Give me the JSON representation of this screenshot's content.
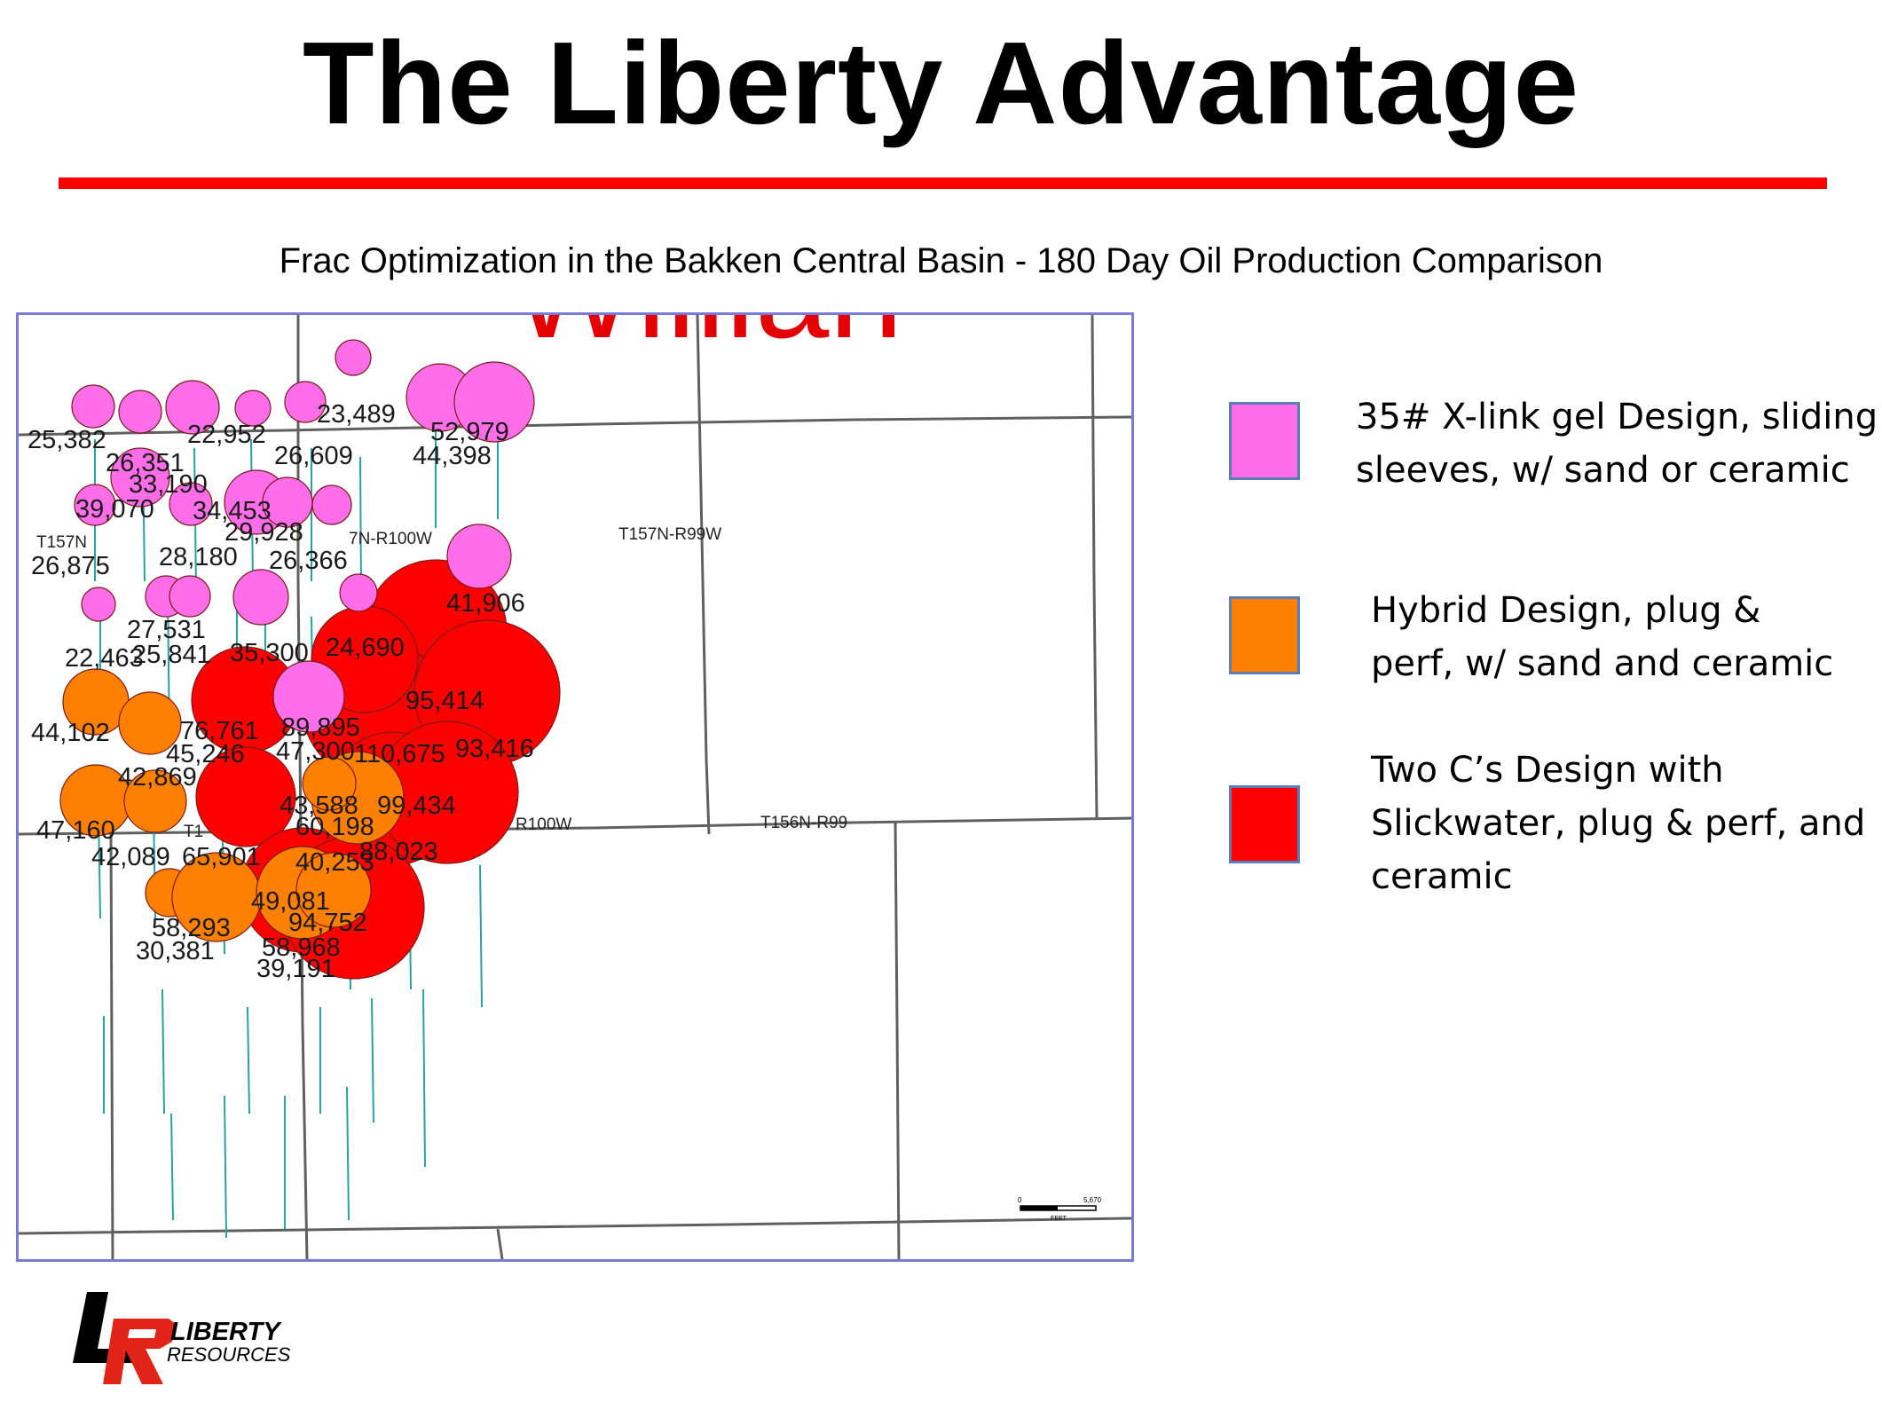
{
  "slide": {
    "title": "The Liberty Advantage",
    "subtitle": "Frac Optimization in the Bakken Central Basin - 180 Day Oil Production Comparison"
  },
  "colors": {
    "accent_rule": "#ff0000",
    "xlink": "#ff6ee8",
    "hybrid": "#ff8000",
    "two_cs": "#ff0000",
    "map_border": "#7b7bd6",
    "section_line": "#606060",
    "well_line": "#29a1a1"
  },
  "legend": [
    {
      "key": "xlink",
      "text": "35# X-link gel Design, sliding\nsleeves, w/ sand or ceramic"
    },
    {
      "key": "hybrid",
      "text": "Hybrid Design, plug &\nperf, w/ sand and ceramic"
    },
    {
      "key": "two_cs",
      "text": "Two C’s Design with\nSlickwater, plug & perf, and\nceramic"
    }
  ],
  "map": {
    "labels": [
      "T157N-R99W",
      "T157N",
      "7N-R100W",
      "R100W",
      "T156N-R99",
      "T1"
    ],
    "scale_bar": {
      "start": "0",
      "end": "5,670",
      "unit": "FEET"
    },
    "background_text": "Willian",
    "wells": [
      {
        "design": "xlink",
        "labels": [
          "25,382"
        ]
      },
      {
        "design": "xlink",
        "labels": [
          "26,351"
        ]
      },
      {
        "design": "xlink",
        "labels": [
          "22,952",
          "33,190"
        ]
      },
      {
        "design": "xlink",
        "labels": [
          "23,489"
        ]
      },
      {
        "design": "xlink",
        "labels": [
          "26,609"
        ]
      },
      {
        "design": "xlink",
        "labels": [
          "52,979",
          "44,398"
        ]
      },
      {
        "design": "xlink",
        "labels": [
          "39,070"
        ]
      },
      {
        "design": "xlink",
        "labels": [
          "34,453",
          "29,928"
        ]
      },
      {
        "design": "xlink",
        "labels": [
          "26,875"
        ]
      },
      {
        "design": "xlink",
        "labels": [
          "28,180"
        ]
      },
      {
        "design": "xlink",
        "labels": [
          "26,366"
        ]
      },
      {
        "design": "xlink",
        "labels": [
          "41,906"
        ]
      },
      {
        "design": "xlink",
        "labels": [
          "27,531",
          "25,841"
        ]
      },
      {
        "design": "xlink",
        "labels": [
          "22,463"
        ]
      },
      {
        "design": "xlink",
        "labels": [
          "35,300"
        ]
      },
      {
        "design": "xlink",
        "labels": [
          "24,690"
        ]
      },
      {
        "design": "xlink",
        "labels": [
          "89,895",
          "47,300"
        ]
      },
      {
        "design": "hybrid",
        "labels": [
          "44,102"
        ]
      },
      {
        "design": "hybrid",
        "labels": [
          "42,869"
        ]
      },
      {
        "design": "hybrid",
        "labels": [
          "47,160"
        ]
      },
      {
        "design": "hybrid",
        "labels": [
          "42,089"
        ]
      },
      {
        "design": "hybrid",
        "labels": [
          "43,588",
          "60,198",
          "40,253"
        ]
      },
      {
        "design": "hybrid",
        "labels": [
          "58,293",
          "30,381"
        ]
      },
      {
        "design": "hybrid",
        "labels": [
          "49,081",
          "94,752",
          "58,968",
          "39,191"
        ]
      },
      {
        "design": "two_cs",
        "labels": [
          "76,761",
          "45,246"
        ]
      },
      {
        "design": "two_cs",
        "labels": [
          "95,414"
        ]
      },
      {
        "design": "two_cs",
        "labels": [
          "110,675"
        ]
      },
      {
        "design": "two_cs",
        "labels": [
          "93,416"
        ]
      },
      {
        "design": "two_cs",
        "labels": [
          "65,901"
        ]
      },
      {
        "design": "two_cs",
        "labels": [
          "99,434",
          "88,023"
        ]
      }
    ]
  },
  "logo": {
    "line1": "LIBERTY",
    "line2": "RESOURCES"
  }
}
